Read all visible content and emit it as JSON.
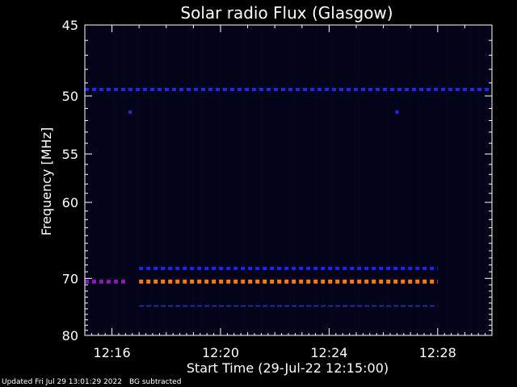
{
  "chart_data": {
    "type": "heatmap",
    "title": "Solar radio Flux (Glasgow)",
    "ylabel": "Frequency [MHz]",
    "xlabel": "Start Time (29-Jul-22 12:15:00)",
    "y_range": [
      45,
      80
    ],
    "y_reversed": true,
    "y_ticks": [
      {
        "value": 45,
        "label": "45"
      },
      {
        "value": 50,
        "label": "50"
      },
      {
        "value": 55,
        "label": "55"
      },
      {
        "value": 60,
        "label": "60"
      },
      {
        "value": 70,
        "label": "70"
      },
      {
        "value": 80,
        "label": "80"
      }
    ],
    "x_range": [
      "12:15:00",
      "12:30:00"
    ],
    "x_ticks": [
      {
        "value": "12:16",
        "label": "12:16"
      },
      {
        "value": "12:20",
        "label": "12:20"
      },
      {
        "value": "12:24",
        "label": "12:24"
      },
      {
        "value": "12:28",
        "label": "12:28"
      }
    ],
    "colors": {
      "background": "#000000",
      "noise": "#05052a",
      "band_blue": "#2222ff",
      "band_purple": "#8a1ab5",
      "band_orange": "#ff7a10",
      "band_dim": "#2a2aa0"
    },
    "bands": [
      {
        "freq": 49.5,
        "start": "12:15:00",
        "end": "12:30:00",
        "intensity": "medium",
        "color": "band_blue"
      },
      {
        "freq": 68.5,
        "start": "12:17:00",
        "end": "12:28:00",
        "intensity": "medium",
        "color": "band_blue"
      },
      {
        "freq": 70.5,
        "start": "12:15:00",
        "end": "12:16:30",
        "intensity": "high",
        "color": "band_purple"
      },
      {
        "freq": 70.5,
        "start": "12:17:00",
        "end": "12:28:00",
        "intensity": "very high",
        "color": "band_orange"
      },
      {
        "freq": 74.5,
        "start": "12:17:00",
        "end": "12:28:00",
        "intensity": "low",
        "color": "band_dim"
      }
    ],
    "spots": [
      {
        "freq": 51.3,
        "time": "12:16:40"
      },
      {
        "freq": 51.3,
        "time": "12:26:30"
      }
    ]
  },
  "footer": {
    "updated": "Updated Fri Jul 29 13:01:29 2022",
    "note": "BG subtracted"
  }
}
